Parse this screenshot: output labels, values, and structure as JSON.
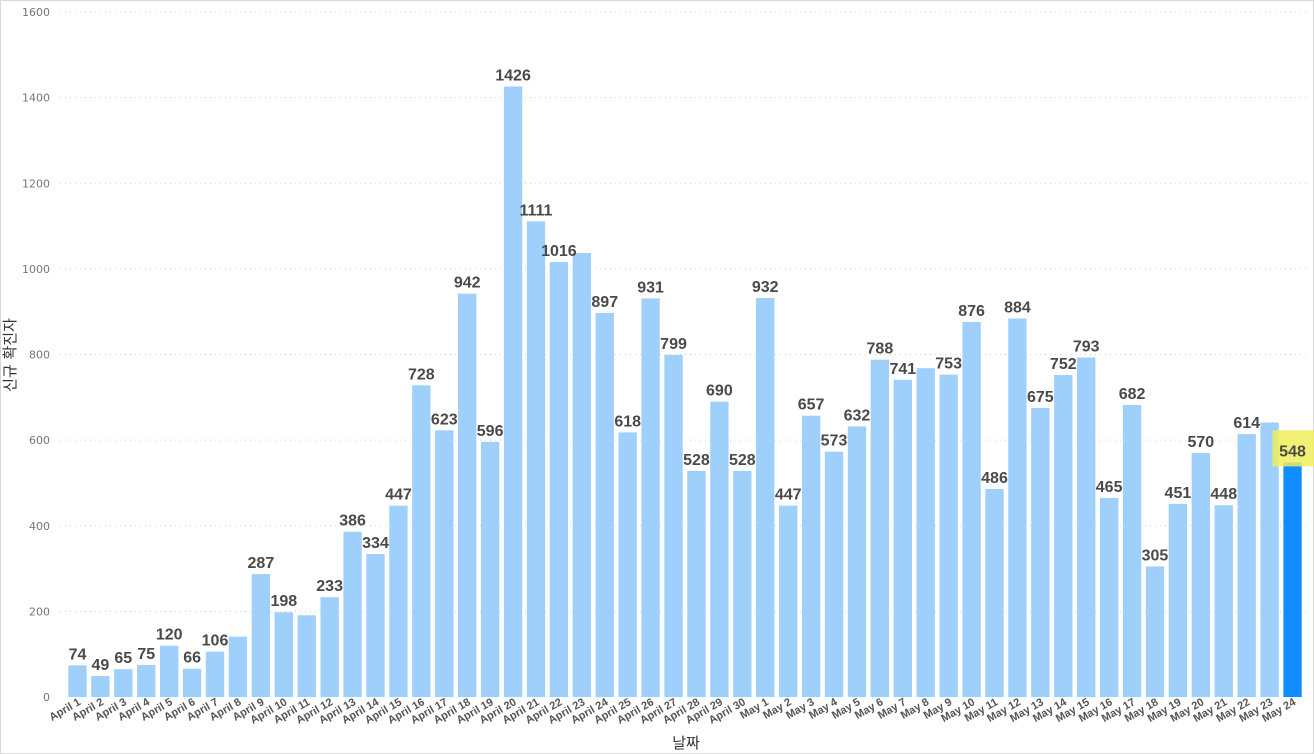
{
  "chart_data": {
    "type": "bar",
    "title": "",
    "xlabel": "날짜",
    "ylabel": "신규 확진자",
    "ylim": [
      0,
      1600
    ],
    "yticks": [
      0,
      200,
      400,
      600,
      800,
      1000,
      1200,
      1400,
      1600
    ],
    "grid": true,
    "categories": [
      "April 1",
      "April 2",
      "April 3",
      "April 4",
      "April 5",
      "April 6",
      "April 7",
      "April 8",
      "April 9",
      "April 10",
      "April 11",
      "April 12",
      "April 13",
      "April 14",
      "April 15",
      "April 16",
      "April 17",
      "April 18",
      "April 19",
      "April 20",
      "April 21",
      "April 22",
      "April 23",
      "April 24",
      "April 25",
      "April 26",
      "April 27",
      "April 28",
      "April 29",
      "April 30",
      "May 1",
      "May 2",
      "May 3",
      "May 4",
      "May 5",
      "May 6",
      "May 7",
      "May 8",
      "May 9",
      "May 10",
      "May 11",
      "May 12",
      "May 13",
      "May 14",
      "May 15",
      "May 16",
      "May 17",
      "May 18",
      "May 19",
      "May 20",
      "May 21",
      "May 22",
      "May 23",
      "May 24"
    ],
    "values": [
      74,
      49,
      65,
      75,
      120,
      66,
      106,
      141,
      287,
      198,
      191,
      233,
      386,
      334,
      447,
      728,
      623,
      942,
      596,
      1426,
      1111,
      1016,
      1037,
      897,
      618,
      931,
      799,
      528,
      690,
      528,
      932,
      447,
      657,
      573,
      632,
      788,
      741,
      768,
      753,
      876,
      486,
      884,
      675,
      752,
      793,
      465,
      682,
      305,
      451,
      570,
      448,
      614,
      641,
      548
    ],
    "data_labels": [
      "74",
      "49",
      "65",
      "75",
      "120",
      "66",
      "106",
      "",
      "287",
      "198",
      "",
      "233",
      "386",
      "334",
      "447",
      "728",
      "623",
      "942",
      "596",
      "1426",
      "1111",
      "1016",
      "",
      "897",
      "618",
      "931",
      "799",
      "528",
      "690",
      "528",
      "932",
      "447",
      "657",
      "573",
      "632",
      "788",
      "741",
      "",
      "753",
      "876",
      "486",
      "884",
      "675",
      "752",
      "793",
      "465",
      "682",
      "305",
      "451",
      "570",
      "448",
      "614",
      "",
      "548"
    ],
    "highlight_index": 53,
    "colors": {
      "bar": "#9fcffb",
      "highlight": "#118dff",
      "highlight_label_bg": "#f0ee5a",
      "label_text": "#4a4a4a",
      "grid": "#cfcfcf"
    }
  }
}
